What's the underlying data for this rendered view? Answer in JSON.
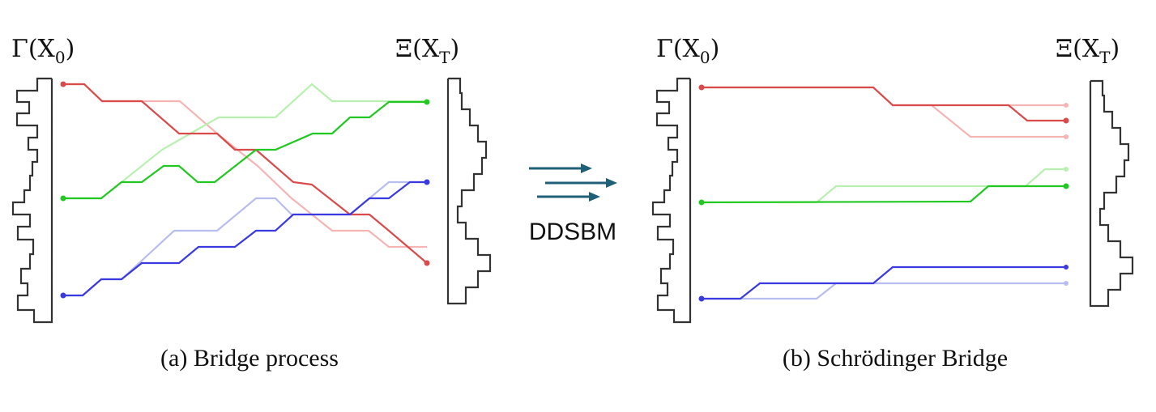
{
  "labels": {
    "left_source": "Γ(X",
    "left_source_sub": "0",
    "left_target": "Ξ(X",
    "left_target_sub": "T",
    "right_source": "Γ(X",
    "right_source_sub": "0",
    "right_target": "Ξ(X",
    "right_target_sub": "T",
    "close_paren": ")"
  },
  "method_label": "DDSBM",
  "captions": {
    "left": "(a) Bridge process",
    "right": "(b) Schrödinger Bridge"
  },
  "colors": {
    "red": "#d94a4a",
    "red_light": "#f5b5b5",
    "green": "#22c822",
    "green_light": "#b8f0b0",
    "blue": "#3a3ae0",
    "blue_light": "#b8bdf0",
    "arrow": "#1f5f78",
    "histogram": "#333333"
  },
  "icons": [
    "arrow-right-icon",
    "arrow-right-icon",
    "arrow-right-icon"
  ]
}
